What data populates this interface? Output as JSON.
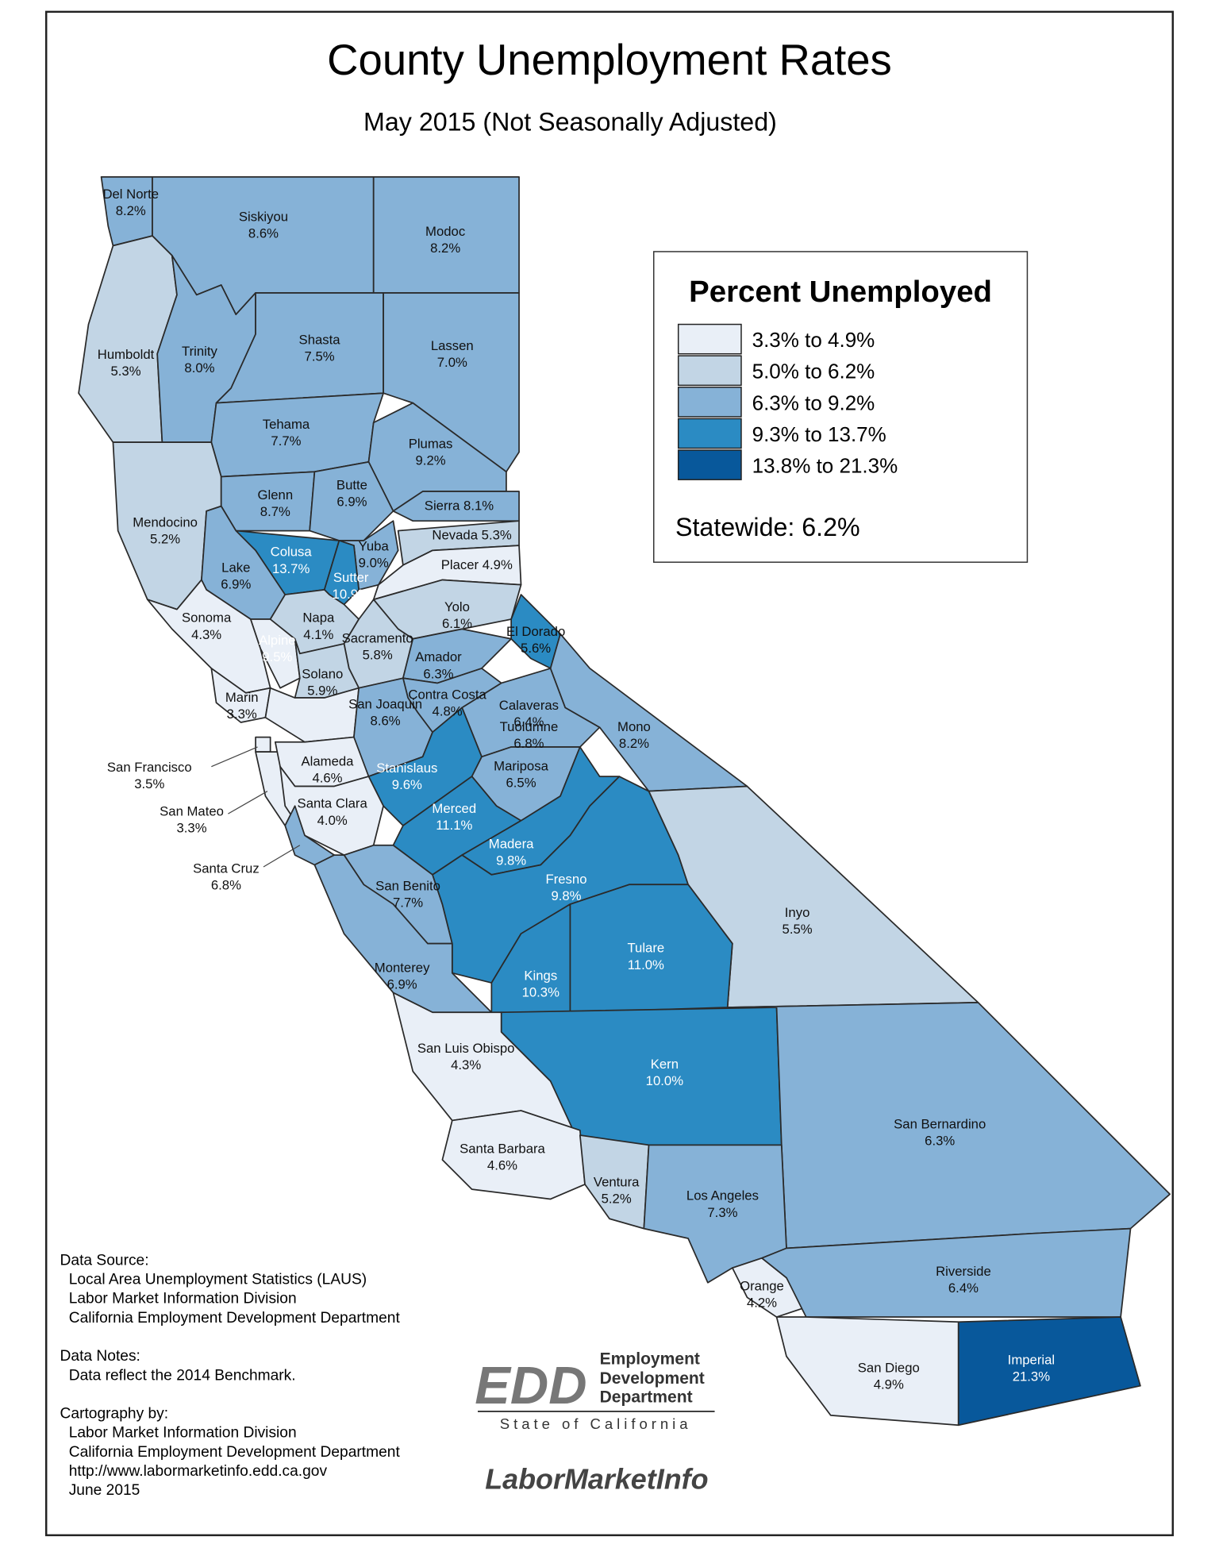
{
  "title": "County Unemployment Rates",
  "subtitle": "May 2015 (Not Seasonally Adjusted)",
  "legend": {
    "title": "Percent Unemployed",
    "statewide": "Statewide: 6.2%",
    "classes": [
      {
        "min": 3.3,
        "max": 4.9,
        "label": "3.3% to 4.9%",
        "color": "#e9eff7"
      },
      {
        "min": 5.0,
        "max": 6.2,
        "label": "5.0% to 6.2%",
        "color": "#c2d5e5"
      },
      {
        "min": 6.3,
        "max": 9.2,
        "label": "6.3% to 9.2%",
        "color": "#86b2d7"
      },
      {
        "min": 9.3,
        "max": 13.7,
        "label": "9.3% to 13.7%",
        "color": "#2b8bc3"
      },
      {
        "min": 13.8,
        "max": 21.3,
        "label": "13.8% to 21.3%",
        "color": "#08589b"
      }
    ]
  },
  "counties": [
    {
      "name": "Del Norte",
      "value": 8.2,
      "value_label": "8.2%"
    },
    {
      "name": "Siskiyou",
      "value": 8.6,
      "value_label": "8.6%"
    },
    {
      "name": "Modoc",
      "value": 8.2,
      "value_label": "8.2%"
    },
    {
      "name": "Humboldt",
      "value": 5.3,
      "value_label": "5.3%"
    },
    {
      "name": "Trinity",
      "value": 8.0,
      "value_label": "8.0%"
    },
    {
      "name": "Shasta",
      "value": 7.5,
      "value_label": "7.5%"
    },
    {
      "name": "Lassen",
      "value": 7.0,
      "value_label": "7.0%"
    },
    {
      "name": "Tehama",
      "value": 7.7,
      "value_label": "7.7%"
    },
    {
      "name": "Plumas",
      "value": 9.2,
      "value_label": "9.2%"
    },
    {
      "name": "Mendocino",
      "value": 5.2,
      "value_label": "5.2%"
    },
    {
      "name": "Glenn",
      "value": 8.7,
      "value_label": "8.7%"
    },
    {
      "name": "Butte",
      "value": 6.9,
      "value_label": "6.9%"
    },
    {
      "name": "Sierra",
      "value": 8.1,
      "value_label": "8.1%"
    },
    {
      "name": "Colusa",
      "value": 13.7,
      "value_label": "13.7%"
    },
    {
      "name": "Yuba",
      "value": 9.0,
      "value_label": "9.0%"
    },
    {
      "name": "Sutter",
      "value": 10.9,
      "value_label": "10.9%"
    },
    {
      "name": "Nevada",
      "value": 5.3,
      "value_label": "5.3%"
    },
    {
      "name": "Placer",
      "value": 4.9,
      "value_label": "4.9%"
    },
    {
      "name": "Lake",
      "value": 6.9,
      "value_label": "6.9%"
    },
    {
      "name": "Sonoma",
      "value": 4.3,
      "value_label": "4.3%"
    },
    {
      "name": "Napa",
      "value": 4.1,
      "value_label": "4.1%"
    },
    {
      "name": "Yolo",
      "value": 6.1,
      "value_label": "6.1%"
    },
    {
      "name": "El Dorado",
      "value": 5.6,
      "value_label": "5.6%"
    },
    {
      "name": "Alpine",
      "value": 9.5,
      "value_label": "9.5%"
    },
    {
      "name": "Sacramento",
      "value": 5.8,
      "value_label": "5.8%"
    },
    {
      "name": "Amador",
      "value": 6.3,
      "value_label": "6.3%"
    },
    {
      "name": "Solano",
      "value": 5.9,
      "value_label": "5.9%"
    },
    {
      "name": "Marin",
      "value": 3.3,
      "value_label": "3.3%"
    },
    {
      "name": "Contra Costa",
      "value": 4.8,
      "value_label": "4.8%"
    },
    {
      "name": "Calaveras",
      "value": 6.4,
      "value_label": "6.4%"
    },
    {
      "name": "San Joaquin",
      "value": 8.6,
      "value_label": "8.6%"
    },
    {
      "name": "Tuolumne",
      "value": 6.8,
      "value_label": "6.8%"
    },
    {
      "name": "Mono",
      "value": 8.2,
      "value_label": "8.2%"
    },
    {
      "name": "San Francisco",
      "value": 3.5,
      "value_label": "3.5%"
    },
    {
      "name": "San Mateo",
      "value": 3.3,
      "value_label": "3.3%"
    },
    {
      "name": "Alameda",
      "value": 4.6,
      "value_label": "4.6%"
    },
    {
      "name": "Stanislaus",
      "value": 9.6,
      "value_label": "9.6%"
    },
    {
      "name": "Mariposa",
      "value": 6.5,
      "value_label": "6.5%"
    },
    {
      "name": "Santa Clara",
      "value": 4.0,
      "value_label": "4.0%"
    },
    {
      "name": "Merced",
      "value": 11.1,
      "value_label": "11.1%"
    },
    {
      "name": "Madera",
      "value": 9.8,
      "value_label": "9.8%"
    },
    {
      "name": "Santa Cruz",
      "value": 6.8,
      "value_label": "6.8%"
    },
    {
      "name": "San Benito",
      "value": 7.7,
      "value_label": "7.7%"
    },
    {
      "name": "Fresno",
      "value": 9.8,
      "value_label": "9.8%"
    },
    {
      "name": "Inyo",
      "value": 5.5,
      "value_label": "5.5%"
    },
    {
      "name": "Monterey",
      "value": 6.9,
      "value_label": "6.9%"
    },
    {
      "name": "Kings",
      "value": 10.3,
      "value_label": "10.3%"
    },
    {
      "name": "Tulare",
      "value": 11.0,
      "value_label": "11.0%"
    },
    {
      "name": "San Luis Obispo",
      "value": 4.3,
      "value_label": "4.3%"
    },
    {
      "name": "Kern",
      "value": 10.0,
      "value_label": "10.0%"
    },
    {
      "name": "San Bernardino",
      "value": 6.3,
      "value_label": "6.3%"
    },
    {
      "name": "Santa Barbara",
      "value": 4.6,
      "value_label": "4.6%"
    },
    {
      "name": "Ventura",
      "value": 5.2,
      "value_label": "5.2%"
    },
    {
      "name": "Los Angeles",
      "value": 7.3,
      "value_label": "7.3%"
    },
    {
      "name": "Orange",
      "value": 4.2,
      "value_label": "4.2%"
    },
    {
      "name": "Riverside",
      "value": 6.4,
      "value_label": "6.4%"
    },
    {
      "name": "San Diego",
      "value": 4.9,
      "value_label": "4.9%"
    },
    {
      "name": "Imperial",
      "value": 21.3,
      "value_label": "21.3%"
    }
  ],
  "notes": {
    "data_source": {
      "heading": "Data Source:",
      "lines": [
        "Local Area Unemployment Statistics (LAUS)",
        "Labor Market Information Division",
        "California Employment Development Department"
      ]
    },
    "data_notes": {
      "heading": "Data Notes:",
      "lines": [
        "Data reflect the 2014 Benchmark."
      ]
    },
    "cartography": {
      "heading": "Cartography by:",
      "lines": [
        "Labor Market Information Division",
        "California Employment Development Department",
        "http://www.labormarketinfo.edd.ca.gov",
        "June 2015"
      ]
    }
  },
  "logos": {
    "edd": "EDD",
    "edd_words": [
      "Employment",
      "Development",
      "Department"
    ],
    "state": "State of California",
    "lmi": "LaborMarketInfo"
  }
}
